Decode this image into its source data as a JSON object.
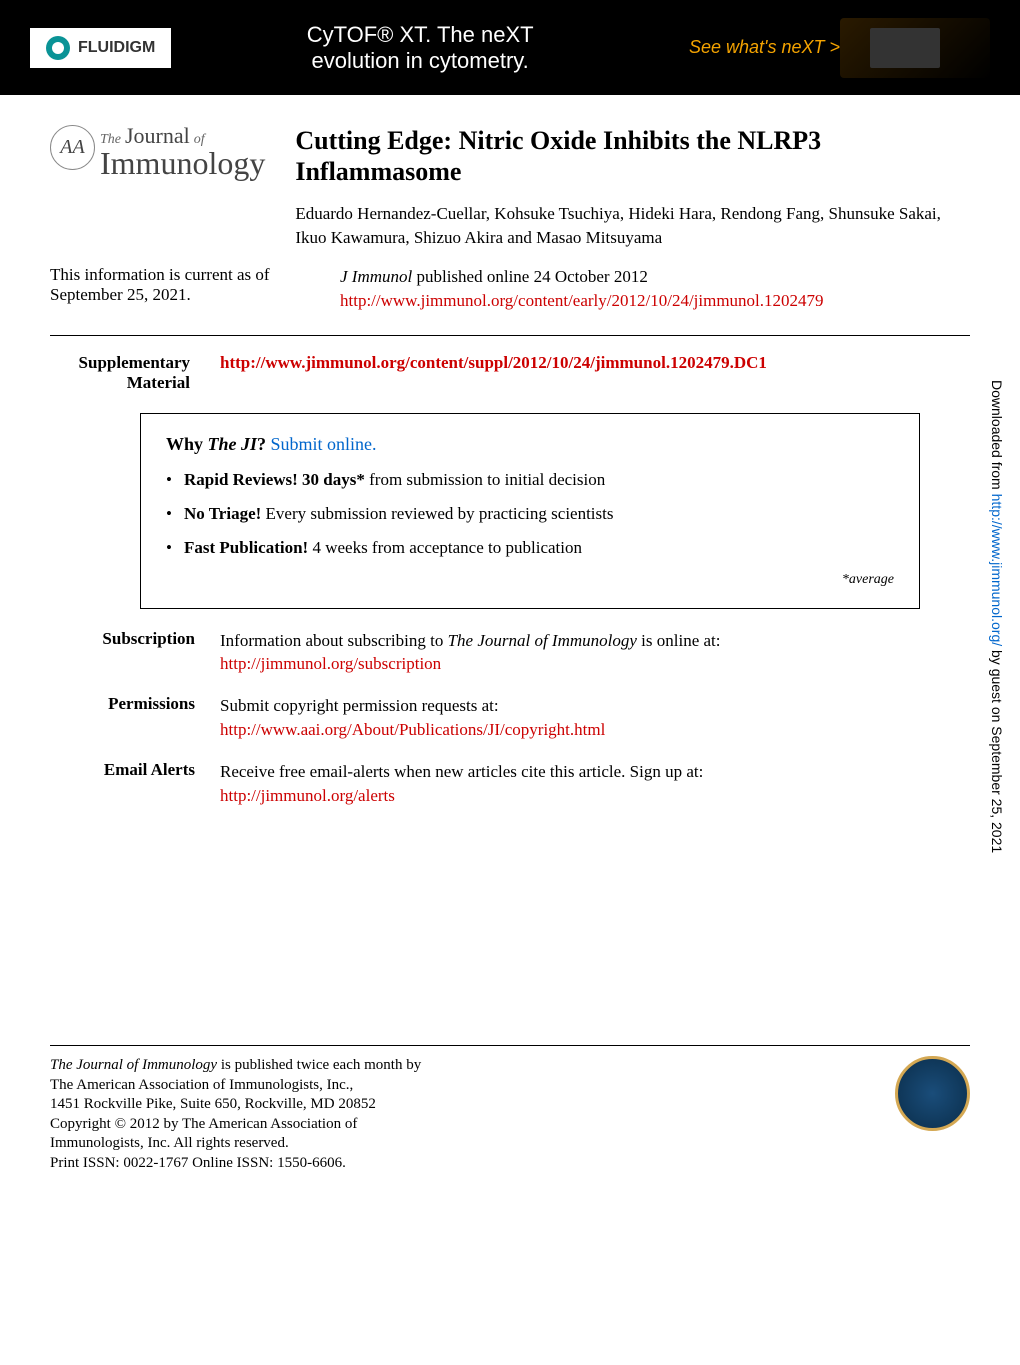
{
  "banner": {
    "fluidigm": "FLUIDIGM",
    "cytof_line1": "CyTOF® XT. The neXT",
    "cytof_line2": "evolution in cytometry.",
    "next_text": "See what's neXT >"
  },
  "journal_logo": {
    "badge_text": "AA",
    "the": "The",
    "journal": "Journal",
    "of": "of",
    "immunology": "Immunology"
  },
  "article": {
    "title": "Cutting Edge: Nitric Oxide Inhibits the NLRP3 Inflammasome",
    "authors": "Eduardo Hernandez-Cuellar, Kohsuke Tsuchiya, Hideki Hara, Rendong Fang, Shunsuke Sakai, Ikuo Kawamura, Shizuo Akira and Masao Mitsuyama"
  },
  "current_info": {
    "label": "This information is current as of September 25, 2021.",
    "journal_name": "J Immunol",
    "pub_date": "published online 24 October 2012",
    "url": "http://www.jimmunol.org/content/early/2012/10/24/jimmunol.1202479"
  },
  "supplementary": {
    "label": "Supplementary Material",
    "url": "http://www.jimmunol.org/content/suppl/2012/10/24/jimmunol.1202479.DC1"
  },
  "why_box": {
    "heading_why": "Why",
    "heading_ji": "The JI",
    "heading_q": "?",
    "submit": "Submit online.",
    "bullet1_bold": "Rapid Reviews! 30 days*",
    "bullet1_rest": " from submission to initial decision",
    "bullet2_bold": "No Triage!",
    "bullet2_rest": " Every submission reviewed by practicing scientists",
    "bullet3_bold": "Fast Publication!",
    "bullet3_rest": " 4 weeks from acceptance to publication",
    "footnote": "*average"
  },
  "info_sections": {
    "subscription": {
      "label": "Subscription",
      "text": "Information about subscribing to ",
      "journal": "The Journal of Immunology",
      "text2": " is online at:",
      "url": "http://jimmunol.org/subscription"
    },
    "permissions": {
      "label": "Permissions",
      "text": "Submit copyright permission requests at:",
      "url": "http://www.aai.org/About/Publications/JI/copyright.html"
    },
    "email_alerts": {
      "label": "Email Alerts",
      "text": "Receive free email-alerts when new articles cite this article. Sign up at:",
      "url": "http://jimmunol.org/alerts"
    }
  },
  "footer": {
    "line1_journal": "The Journal of Immunology",
    "line1_rest": " is published twice each month by",
    "line2": "The American Association of Immunologists, Inc.,",
    "line3": "1451 Rockville Pike, Suite 650, Rockville, MD 20852",
    "line4": "Copyright © 2012 by The American Association of",
    "line5": "Immunologists, Inc. All rights reserved.",
    "line6": "Print ISSN: 0022-1767 Online ISSN: 1550-6606."
  },
  "sidebar": {
    "text_before": "Downloaded from ",
    "url": "http://www.jimmunol.org/",
    "text_after": " by guest on September 25, 2021"
  },
  "colors": {
    "banner_bg": "#000000",
    "fluidigm_accent": "#0a9396",
    "next_color": "#f4a300",
    "red_link": "#cc0000",
    "blue_link": "#0066cc",
    "badge_gold": "#d4a853",
    "badge_blue": "#1a4d7a"
  }
}
